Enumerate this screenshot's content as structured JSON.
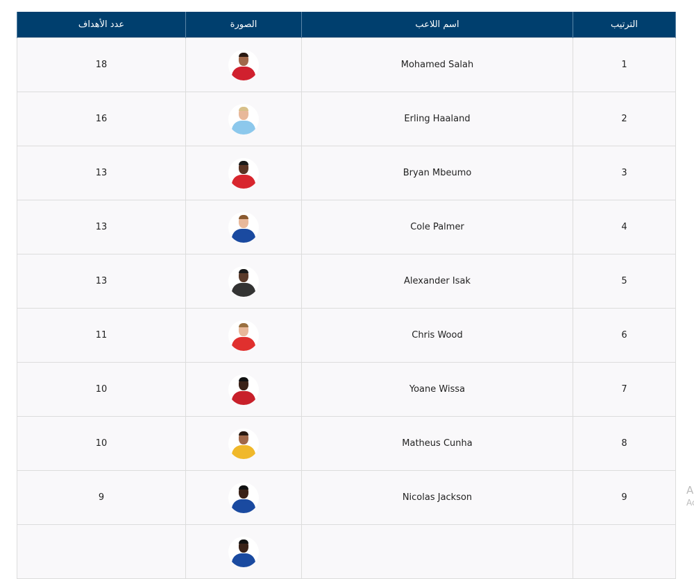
{
  "headers": {
    "rank": "الترتيب",
    "name": "اسم اللاعب",
    "photo": "الصورة",
    "goals": "عدد الأهداف"
  },
  "rows": [
    {
      "rank": "1",
      "name": "Mohamed Salah",
      "goals": "18",
      "jersey": "#d0202e",
      "skin": "#a0684a",
      "hair": "#2a1a12"
    },
    {
      "rank": "2",
      "name": "Erling Haaland",
      "goals": "16",
      "jersey": "#8cc8ec",
      "skin": "#e8b89a",
      "hair": "#d8c08a"
    },
    {
      "rank": "3",
      "name": "Bryan Mbeumo",
      "goals": "13",
      "jersey": "#d8262e",
      "skin": "#5a3424",
      "hair": "#1a1a1a"
    },
    {
      "rank": "4",
      "name": "Cole Palmer",
      "goals": "13",
      "jersey": "#1a4aa0",
      "skin": "#e8b89a",
      "hair": "#8a5a30"
    },
    {
      "rank": "5",
      "name": "Alexander Isak",
      "goals": "13",
      "jersey": "#333333",
      "skin": "#5a3a2a",
      "hair": "#1a1a1a"
    },
    {
      "rank": "6",
      "name": "Chris Wood",
      "goals": "11",
      "jersey": "#e0302e",
      "skin": "#e8b89a",
      "hair": "#9a7040"
    },
    {
      "rank": "7",
      "name": "Yoane Wissa",
      "goals": "10",
      "jersey": "#c8202a",
      "skin": "#3a2218",
      "hair": "#111111"
    },
    {
      "rank": "8",
      "name": "Matheus Cunha",
      "goals": "10",
      "jersey": "#f0b82a",
      "skin": "#a0684a",
      "hair": "#2a1a12"
    },
    {
      "rank": "9",
      "name": "Nicolas Jackson",
      "goals": "9",
      "jersey": "#1a4aa0",
      "skin": "#3a2218",
      "hair": "#111111"
    },
    {
      "rank": "",
      "name": "",
      "goals": "",
      "jersey": "#1a4aa0",
      "skin": "#3a2218",
      "hair": "#111111"
    }
  ],
  "watermark": {
    "line1": "A",
    "line2": "Ac"
  }
}
